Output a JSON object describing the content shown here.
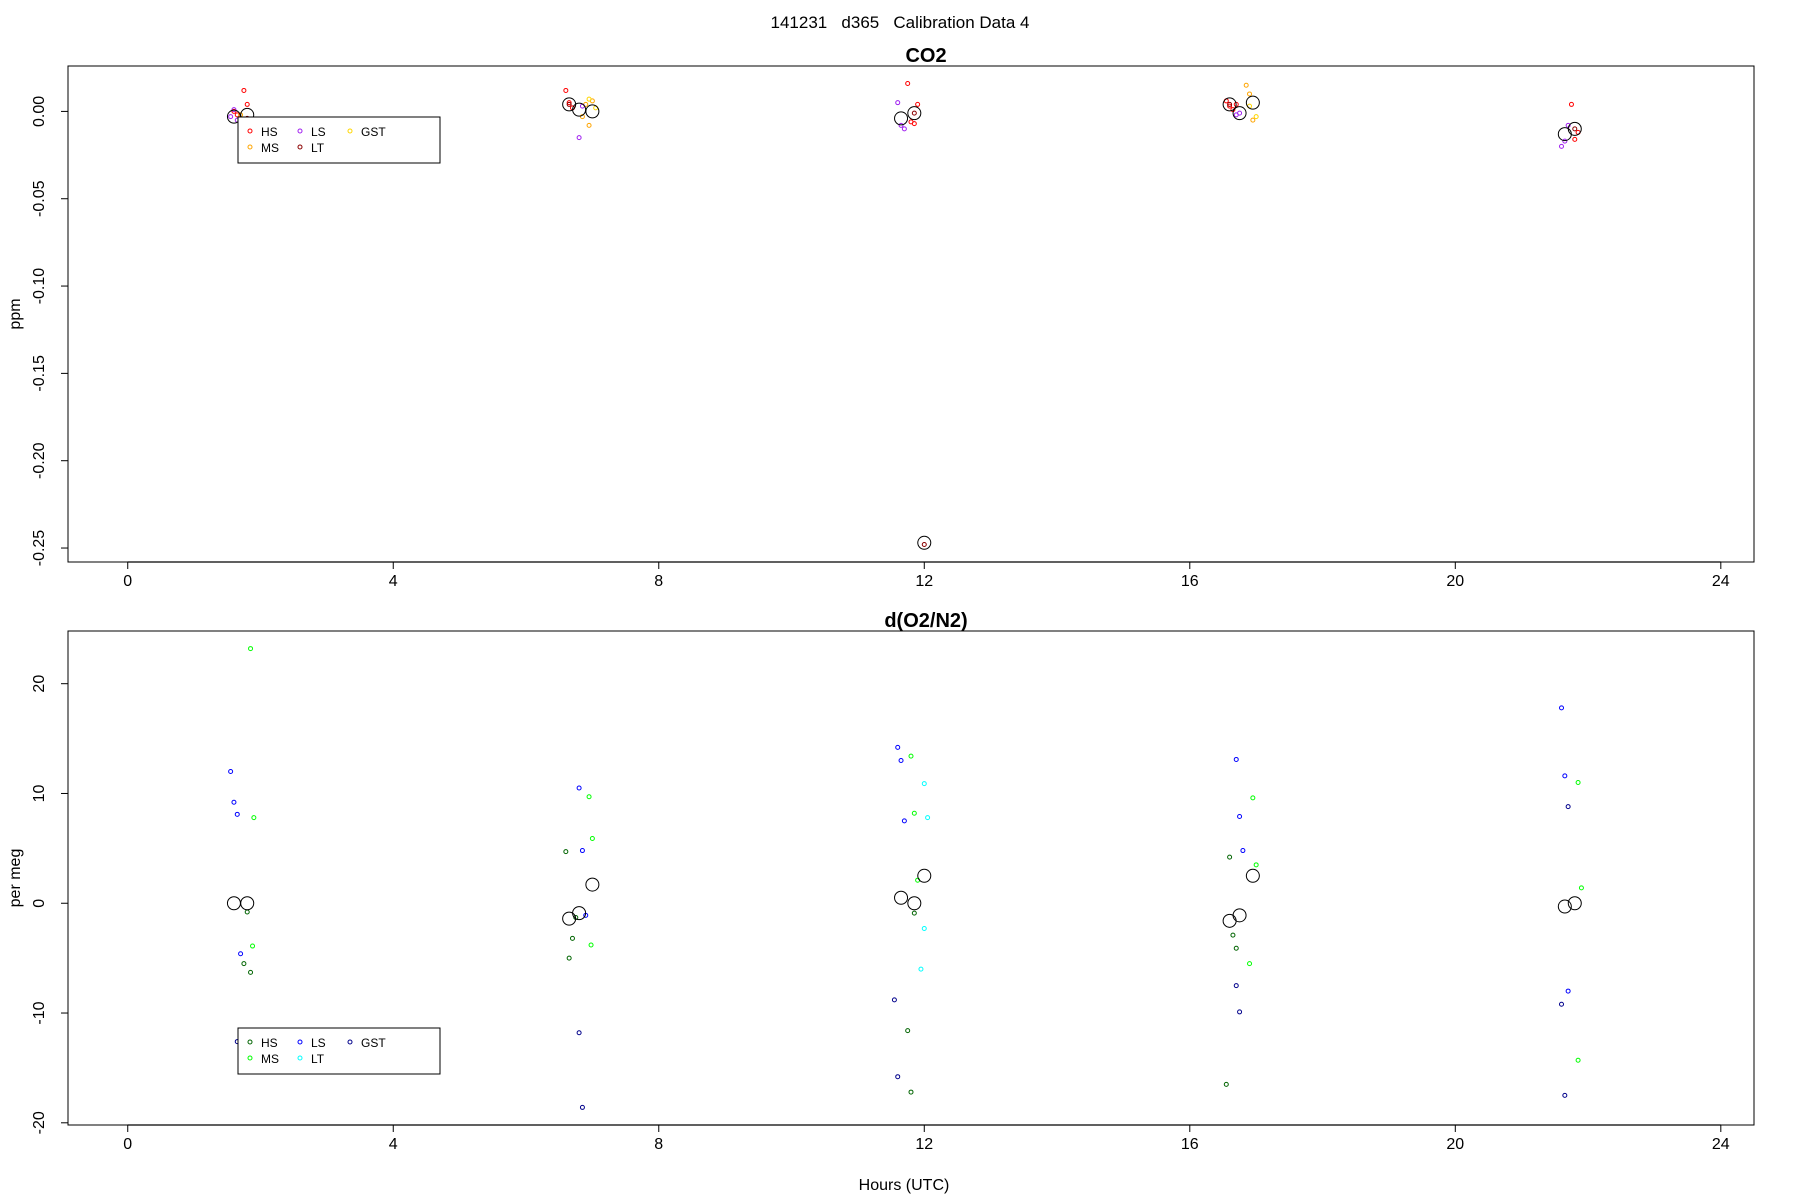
{
  "figure": {
    "suptitle": "141231   d365   Calibration Data 4",
    "xlabel": "Hours (UTC)"
  },
  "chart_data": [
    {
      "type": "scatter",
      "title": "CO2",
      "xlabel": "",
      "ylabel": "ppm",
      "xlim": [
        -0.9,
        24.5
      ],
      "ylim": [
        -0.258,
        0.026
      ],
      "xticks": [
        0,
        4,
        8,
        12,
        16,
        20,
        24
      ],
      "yticks": [
        0.0,
        -0.05,
        -0.1,
        -0.15,
        -0.2,
        -0.25
      ],
      "ytick_labels": [
        "0.00",
        "-0.05",
        "-0.10",
        "-0.15",
        "-0.20",
        "-0.25"
      ],
      "grid": false,
      "legend_position": "top-left",
      "legend_columns": 3,
      "legend": [
        {
          "label": "HS",
          "color": "#ff0000"
        },
        {
          "label": "MS",
          "color": "#ffa500"
        },
        {
          "label": "LS",
          "color": "#a020f0"
        },
        {
          "label": "LT",
          "color": "#8b0000"
        },
        {
          "label": "GST",
          "color": "#ffd700"
        }
      ],
      "series": [
        {
          "name": "HS",
          "color": "#ff0000",
          "x": [
            1.6,
            1.65,
            1.7,
            1.75,
            1.8,
            6.6,
            6.65,
            6.7,
            11.75,
            11.8,
            11.85,
            11.9,
            16.55,
            16.6,
            16.65,
            16.7,
            21.75,
            21.8,
            21.85
          ],
          "y": [
            0.0,
            -0.002,
            -0.004,
            0.012,
            0.004,
            0.012,
            0.005,
            0.002,
            0.016,
            -0.006,
            -0.007,
            0.004,
            0.006,
            0.003,
            0.001,
            0.004,
            0.004,
            -0.016,
            -0.012
          ]
        },
        {
          "name": "MS",
          "color": "#ffa500",
          "x": [
            1.7,
            6.85,
            6.9,
            6.95,
            7.0,
            16.85,
            16.9,
            16.95
          ],
          "y": [
            -0.002,
            -0.003,
            0.004,
            -0.008,
            0.006,
            0.015,
            0.01,
            -0.005
          ]
        },
        {
          "name": "LS",
          "color": "#a020f0",
          "x": [
            1.55,
            1.6,
            1.65,
            1.7,
            6.8,
            6.85,
            11.6,
            11.65,
            11.7,
            16.7,
            16.75,
            21.6,
            21.65,
            21.7
          ],
          "y": [
            -0.003,
            0.001,
            -0.005,
            -0.009,
            -0.015,
            0.003,
            0.005,
            -0.008,
            -0.01,
            -0.002,
            -0.001,
            -0.02,
            -0.017,
            -0.008
          ]
        },
        {
          "name": "LT",
          "color": "#8b0000",
          "x": [
            1.8,
            6.65,
            11.85,
            12.0,
            16.6,
            21.8
          ],
          "y": [
            -0.004,
            0.004,
            -0.001,
            -0.248,
            0.004,
            -0.01
          ]
        },
        {
          "name": "GST",
          "color": "#ffd700",
          "x": [
            6.95,
            7.05,
            16.9,
            17.0
          ],
          "y": [
            0.007,
            0.002,
            0.003,
            -0.003
          ]
        }
      ],
      "means": {
        "x": [
          1.6,
          1.8,
          6.65,
          6.8,
          7.0,
          11.65,
          11.85,
          12.0,
          16.6,
          16.75,
          16.95,
          21.65,
          21.8
        ],
        "y": [
          -0.003,
          -0.002,
          0.004,
          0.001,
          0.0,
          -0.004,
          -0.001,
          -0.247,
          0.004,
          -0.001,
          0.005,
          -0.013,
          -0.01
        ]
      }
    },
    {
      "type": "scatter",
      "title": "d(O2/N2)",
      "xlabel": "Hours (UTC)",
      "ylabel": "per meg",
      "xlim": [
        -0.9,
        24.5
      ],
      "ylim": [
        -20.2,
        24.8
      ],
      "xticks": [
        0,
        4,
        8,
        12,
        16,
        20,
        24
      ],
      "yticks": [
        20,
        10,
        0,
        -10,
        -20
      ],
      "ytick_labels": [
        "20",
        "10",
        "0",
        "-10",
        "-20"
      ],
      "grid": false,
      "legend_position": "bottom-left",
      "legend_columns": 3,
      "legend": [
        {
          "label": "HS",
          "color": "#006400"
        },
        {
          "label": "MS",
          "color": "#00ff00"
        },
        {
          "label": "LS",
          "color": "#0000ff"
        },
        {
          "label": "LT",
          "color": "#00ffff"
        },
        {
          "label": "GST",
          "color": "#00008b"
        }
      ],
      "series": [
        {
          "name": "HS",
          "color": "#006400",
          "x": [
            1.75,
            1.8,
            1.85,
            6.6,
            6.65,
            6.7,
            6.75,
            11.75,
            11.8,
            11.85,
            16.55,
            16.6,
            16.65,
            16.7
          ],
          "y": [
            -5.5,
            -0.8,
            -6.3,
            4.7,
            -5.0,
            -3.2,
            -1.3,
            -11.6,
            -17.2,
            -0.9,
            -16.5,
            4.2,
            -2.9,
            -4.1
          ]
        },
        {
          "name": "MS",
          "color": "#00ff00",
          "x": [
            1.85,
            1.9,
            1.88,
            6.95,
            7.0,
            6.98,
            11.8,
            11.85,
            11.9,
            16.95,
            17.0,
            16.9,
            21.85,
            21.9,
            21.85
          ],
          "y": [
            23.2,
            7.8,
            -3.9,
            9.7,
            5.9,
            -3.8,
            13.4,
            8.2,
            2.1,
            9.6,
            3.5,
            -5.5,
            11.0,
            1.4,
            -14.3
          ]
        },
        {
          "name": "LS",
          "color": "#0000ff",
          "x": [
            1.55,
            1.6,
            1.65,
            1.7,
            6.8,
            6.85,
            6.9,
            11.6,
            11.65,
            11.7,
            16.7,
            16.75,
            16.8,
            21.6,
            21.65,
            21.7
          ],
          "y": [
            12.0,
            9.2,
            8.1,
            -4.6,
            10.5,
            4.8,
            -1.1,
            14.2,
            13.0,
            7.5,
            13.1,
            7.9,
            4.8,
            17.8,
            11.6,
            -8.0
          ]
        },
        {
          "name": "LT",
          "color": "#00ffff",
          "x": [
            12.0,
            12.05,
            12.0,
            11.95
          ],
          "y": [
            10.9,
            7.8,
            -2.3,
            -6.0
          ]
        },
        {
          "name": "GST",
          "color": "#00008b",
          "x": [
            1.65,
            1.7,
            6.8,
            6.85,
            11.55,
            11.6,
            16.7,
            16.75,
            21.6,
            21.65,
            21.7
          ],
          "y": [
            -12.6,
            -12.8,
            -11.8,
            -18.6,
            -8.8,
            -15.8,
            -7.5,
            -9.9,
            -9.2,
            -17.5,
            8.8
          ]
        }
      ],
      "means": {
        "x": [
          1.6,
          1.8,
          6.65,
          6.8,
          7.0,
          11.65,
          11.85,
          12.0,
          16.6,
          16.75,
          16.95,
          21.65,
          21.8
        ],
        "y": [
          0.0,
          0.0,
          -1.4,
          -0.9,
          1.7,
          0.5,
          0.0,
          2.5,
          -1.6,
          -1.1,
          2.5,
          -0.3,
          0.0
        ]
      }
    }
  ]
}
